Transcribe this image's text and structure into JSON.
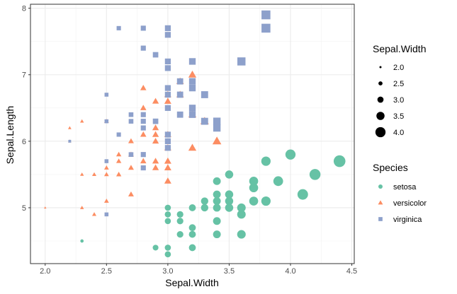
{
  "chart_data": {
    "type": "scatter",
    "xlabel": "Sepal.Width",
    "ylabel": "Sepal.Length",
    "xlim": [
      1.88,
      4.52
    ],
    "ylim": [
      4.16,
      8.06
    ],
    "x_ticks": [
      2.0,
      2.5,
      3.0,
      3.5,
      4.0,
      4.5
    ],
    "x_tick_labels": [
      "2.0",
      "2.5",
      "3.0",
      "3.5",
      "4.0",
      "4.5"
    ],
    "y_ticks": [
      5,
      6,
      7,
      8
    ],
    "y_tick_labels": [
      "5",
      "6",
      "7",
      "8"
    ],
    "grid": true,
    "size_encoding": "Sepal.Width",
    "legend_position": "right",
    "size_legend": {
      "title": "Sepal.Width",
      "values": [
        2.0,
        2.5,
        3.0,
        3.5,
        4.0
      ],
      "labels": [
        "2.0",
        "2.5",
        "3.0",
        "3.5",
        "4.0"
      ]
    },
    "color_legend": {
      "title": "Species",
      "entries": [
        {
          "name": "setosa",
          "shape": "circle",
          "color": "#66c2a5"
        },
        {
          "name": "versicolor",
          "shape": "triangle",
          "color": "#fc8d62"
        },
        {
          "name": "virginica",
          "shape": "square",
          "color": "#8da0cb"
        }
      ]
    },
    "series": [
      {
        "name": "setosa",
        "color": "#66c2a5",
        "shape": "circle",
        "points": [
          [
            2.3,
            4.5
          ],
          [
            2.9,
            4.4
          ],
          [
            3.0,
            4.3
          ],
          [
            3.0,
            4.4
          ],
          [
            3.2,
            4.4
          ],
          [
            3.0,
            4.8
          ],
          [
            3.0,
            4.9
          ],
          [
            3.0,
            5.0
          ],
          [
            3.1,
            4.6
          ],
          [
            3.1,
            4.8
          ],
          [
            3.1,
            4.9
          ],
          [
            3.2,
            4.6
          ],
          [
            3.2,
            4.7
          ],
          [
            3.2,
            5.0
          ],
          [
            3.3,
            5.0
          ],
          [
            3.3,
            5.1
          ],
          [
            3.4,
            4.6
          ],
          [
            3.4,
            4.8
          ],
          [
            3.4,
            5.0
          ],
          [
            3.4,
            5.1
          ],
          [
            3.4,
            5.2
          ],
          [
            3.4,
            5.4
          ],
          [
            3.5,
            5.0
          ],
          [
            3.5,
            5.1
          ],
          [
            3.5,
            5.2
          ],
          [
            3.5,
            5.5
          ],
          [
            3.6,
            4.6
          ],
          [
            3.6,
            4.9
          ],
          [
            3.6,
            5.0
          ],
          [
            3.7,
            5.1
          ],
          [
            3.7,
            5.3
          ],
          [
            3.7,
            5.4
          ],
          [
            3.8,
            5.1
          ],
          [
            3.8,
            5.7
          ],
          [
            3.9,
            5.4
          ],
          [
            4.0,
            5.8
          ],
          [
            4.1,
            5.2
          ],
          [
            4.2,
            5.5
          ],
          [
            4.4,
            5.7
          ]
        ]
      },
      {
        "name": "versicolor",
        "color": "#fc8d62",
        "shape": "triangle",
        "points": [
          [
            2.0,
            5.0
          ],
          [
            2.2,
            6.0
          ],
          [
            2.2,
            6.2
          ],
          [
            2.3,
            5.0
          ],
          [
            2.3,
            5.5
          ],
          [
            2.3,
            6.3
          ],
          [
            2.4,
            4.9
          ],
          [
            2.4,
            5.5
          ],
          [
            2.5,
            5.1
          ],
          [
            2.5,
            5.5
          ],
          [
            2.5,
            5.6
          ],
          [
            2.5,
            6.3
          ],
          [
            2.6,
            5.5
          ],
          [
            2.6,
            5.7
          ],
          [
            2.6,
            5.8
          ],
          [
            2.7,
            5.2
          ],
          [
            2.7,
            5.6
          ],
          [
            2.7,
            5.8
          ],
          [
            2.7,
            6.0
          ],
          [
            2.8,
            5.7
          ],
          [
            2.8,
            6.1
          ],
          [
            2.8,
            6.5
          ],
          [
            2.8,
            6.8
          ],
          [
            2.9,
            5.6
          ],
          [
            2.9,
            5.7
          ],
          [
            2.9,
            6.0
          ],
          [
            2.9,
            6.1
          ],
          [
            2.9,
            6.2
          ],
          [
            2.9,
            6.6
          ],
          [
            3.0,
            5.4
          ],
          [
            3.0,
            5.6
          ],
          [
            3.0,
            5.7
          ],
          [
            3.0,
            5.9
          ],
          [
            3.0,
            6.1
          ],
          [
            3.0,
            6.6
          ],
          [
            3.0,
            6.7
          ],
          [
            3.1,
            6.7
          ],
          [
            3.1,
            6.9
          ],
          [
            3.2,
            5.9
          ],
          [
            3.2,
            6.4
          ],
          [
            3.2,
            7.0
          ],
          [
            3.3,
            6.3
          ],
          [
            3.4,
            6.0
          ]
        ]
      },
      {
        "name": "virginica",
        "color": "#8da0cb",
        "shape": "square",
        "points": [
          [
            2.2,
            6.0
          ],
          [
            2.5,
            4.9
          ],
          [
            2.5,
            5.7
          ],
          [
            2.5,
            6.3
          ],
          [
            2.5,
            6.7
          ],
          [
            2.6,
            6.1
          ],
          [
            2.6,
            7.7
          ],
          [
            2.7,
            5.8
          ],
          [
            2.7,
            6.3
          ],
          [
            2.7,
            6.4
          ],
          [
            2.8,
            5.6
          ],
          [
            2.8,
            5.8
          ],
          [
            2.8,
            6.2
          ],
          [
            2.8,
            6.3
          ],
          [
            2.8,
            6.4
          ],
          [
            2.8,
            7.4
          ],
          [
            2.8,
            7.7
          ],
          [
            2.9,
            6.3
          ],
          [
            2.9,
            7.3
          ],
          [
            3.0,
            5.9
          ],
          [
            3.0,
            6.0
          ],
          [
            3.0,
            6.1
          ],
          [
            3.0,
            6.5
          ],
          [
            3.0,
            6.7
          ],
          [
            3.0,
            6.8
          ],
          [
            3.0,
            7.1
          ],
          [
            3.0,
            7.2
          ],
          [
            3.0,
            7.6
          ],
          [
            3.0,
            7.7
          ],
          [
            3.1,
            6.4
          ],
          [
            3.1,
            6.7
          ],
          [
            3.1,
            6.9
          ],
          [
            3.2,
            6.4
          ],
          [
            3.2,
            6.5
          ],
          [
            3.2,
            6.8
          ],
          [
            3.2,
            6.9
          ],
          [
            3.2,
            7.2
          ],
          [
            3.3,
            6.3
          ],
          [
            3.3,
            6.7
          ],
          [
            3.4,
            6.2
          ],
          [
            3.4,
            6.3
          ],
          [
            3.6,
            7.2
          ],
          [
            3.8,
            7.7
          ],
          [
            3.8,
            7.9
          ]
        ]
      }
    ]
  }
}
